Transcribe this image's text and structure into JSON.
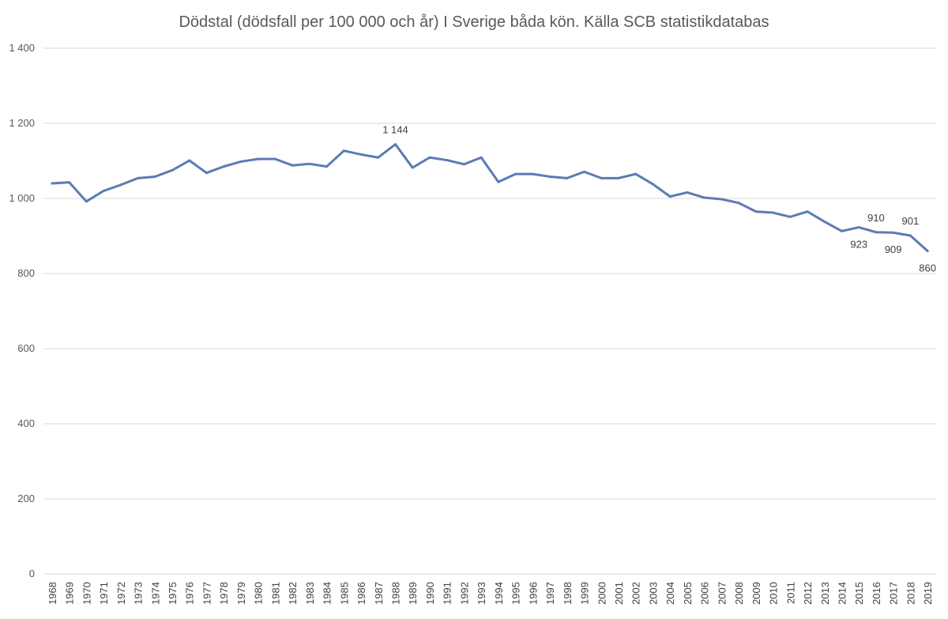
{
  "chart_data": {
    "type": "line",
    "title": "Dödstal (dödsfall per 100 000 och år) I Sverige båda kön. Källa SCB statistikdatabas",
    "xlabel": "",
    "ylabel": "",
    "ylim": [
      0,
      1400
    ],
    "yticks": [
      0,
      200,
      400,
      600,
      800,
      1000,
      1200,
      1400
    ],
    "ytick_labels": [
      "0",
      "200",
      "400",
      "600",
      "800",
      "1 000",
      "1 200",
      "1 400"
    ],
    "grid": true,
    "legend": "none",
    "line_color": "#5b7bb4",
    "categories": [
      "1968",
      "1969",
      "1970",
      "1971",
      "1972",
      "1973",
      "1974",
      "1975",
      "1976",
      "1977",
      "1978",
      "1979",
      "1980",
      "1981",
      "1982",
      "1983",
      "1984",
      "1985",
      "1986",
      "1987",
      "1988",
      "1989",
      "1990",
      "1991",
      "1992",
      "1993",
      "1994",
      "1995",
      "1996",
      "1997",
      "1998",
      "1999",
      "2000",
      "2001",
      "2002",
      "2003",
      "2004",
      "2005",
      "2006",
      "2007",
      "2008",
      "2009",
      "2010",
      "2011",
      "2012",
      "2013",
      "2014",
      "2015",
      "2016",
      "2017",
      "2018",
      "2019"
    ],
    "values": [
      1040,
      1043,
      992,
      1020,
      1036,
      1054,
      1058,
      1075,
      1101,
      1068,
      1085,
      1098,
      1105,
      1105,
      1088,
      1092,
      1085,
      1127,
      1117,
      1109,
      1144,
      1082,
      1109,
      1102,
      1091,
      1109,
      1044,
      1065,
      1065,
      1058,
      1054,
      1071,
      1054,
      1054,
      1065,
      1038,
      1005,
      1016,
      1002,
      998,
      988,
      965,
      962,
      951,
      965,
      938,
      913,
      923,
      910,
      909,
      901,
      860
    ],
    "data_labels": [
      {
        "category": "1988",
        "text": "1 144",
        "placement": "above"
      },
      {
        "category": "2015",
        "text": "923",
        "placement": "below"
      },
      {
        "category": "2016",
        "text": "910",
        "placement": "above"
      },
      {
        "category": "2017",
        "text": "909",
        "placement": "below"
      },
      {
        "category": "2018",
        "text": "901",
        "placement": "above"
      },
      {
        "category": "2019",
        "text": "860",
        "placement": "below"
      }
    ]
  }
}
